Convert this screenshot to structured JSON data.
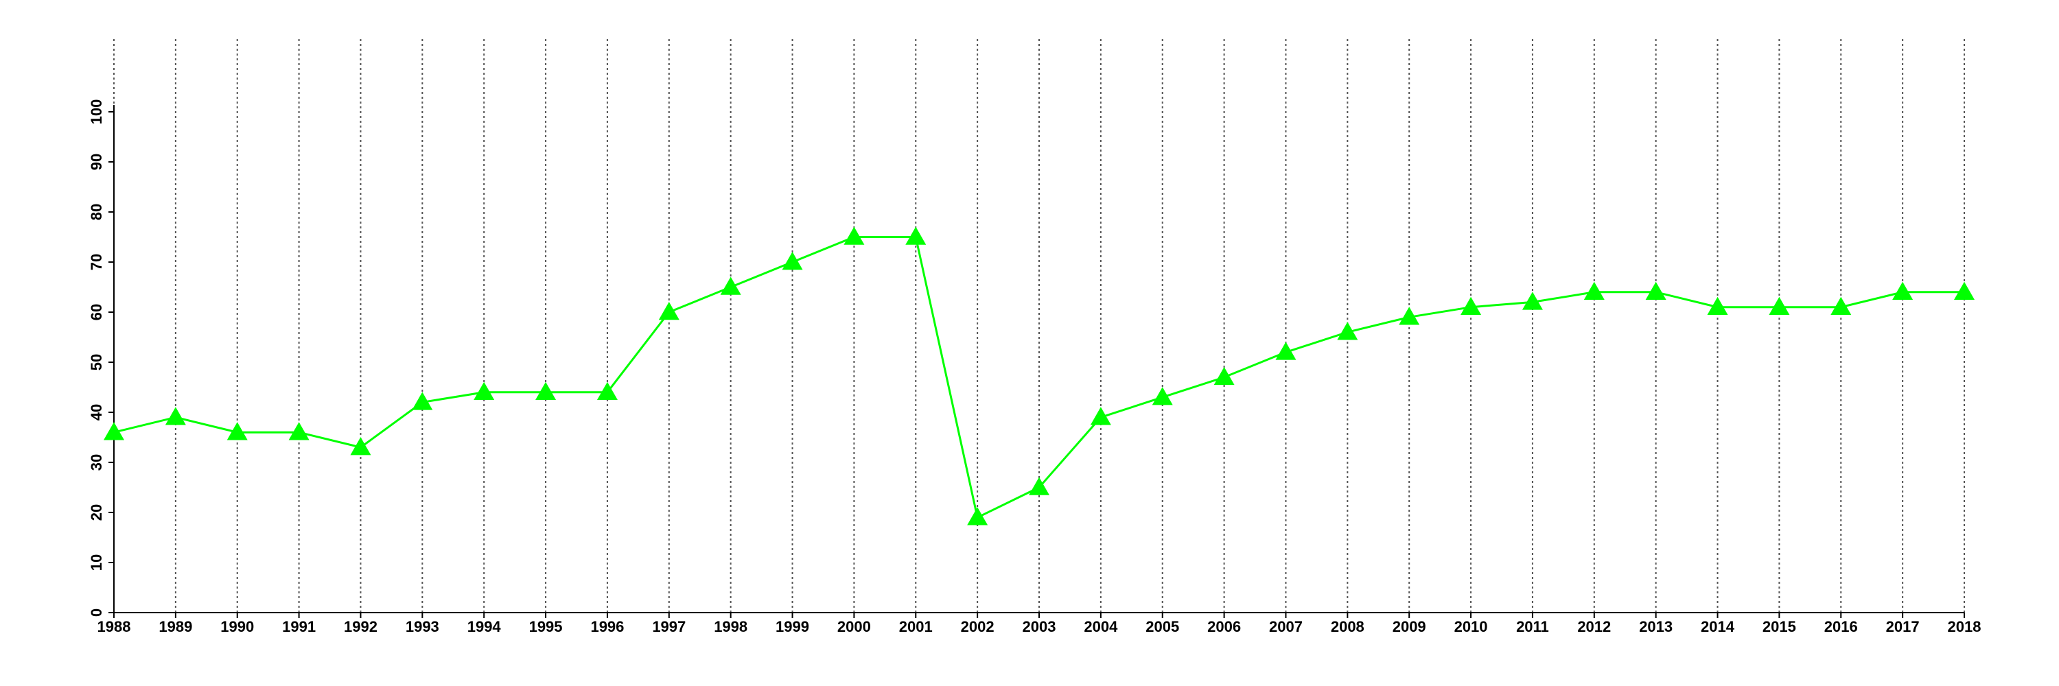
{
  "chart_data": {
    "type": "line",
    "categories": [
      "1988",
      "1989",
      "1990",
      "1991",
      "1992",
      "1993",
      "1994",
      "1995",
      "1996",
      "1997",
      "1998",
      "1999",
      "2000",
      "2001",
      "2002",
      "2003",
      "2004",
      "2005",
      "2006",
      "2007",
      "2008",
      "2009",
      "2010",
      "2011",
      "2012",
      "2013",
      "2014",
      "2015",
      "2016",
      "2017",
      "2018"
    ],
    "series": [
      {
        "color": "#00ff00",
        "marker": "triangle",
        "values": [
          36,
          39,
          36,
          36,
          33,
          42,
          44,
          44,
          44,
          60,
          65,
          70,
          75,
          75,
          19,
          25,
          39,
          43,
          47,
          52,
          56,
          59,
          61,
          62,
          64,
          64,
          61,
          61,
          61,
          64,
          64
        ]
      }
    ],
    "ylim": [
      0,
      100
    ],
    "yticks": [
      0,
      10,
      20,
      30,
      40,
      50,
      60,
      70,
      80,
      90,
      100
    ],
    "grid": true
  }
}
